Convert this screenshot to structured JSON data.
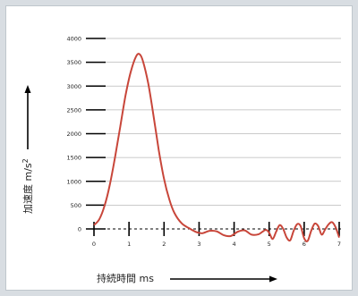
{
  "chart_data": {
    "type": "line",
    "title": "",
    "xlabel": "持続時間 ms",
    "ylabel": "加速度 m/s²",
    "ylabel_main": "加速度 m/s",
    "ylabel_sup": "2",
    "xlim": [
      0,
      7
    ],
    "ylim": [
      0,
      4000
    ],
    "x_ticks": [
      "0",
      "1",
      "2",
      "3",
      "4",
      "5",
      "6",
      "7"
    ],
    "y_ticks": [
      "0",
      "500",
      "1000",
      "1500",
      "2000",
      "2500",
      "3000",
      "3500",
      "4000"
    ],
    "grid": true,
    "series": [
      {
        "color": "#c8463a",
        "x": [
          0.0,
          0.15,
          0.3,
          0.45,
          0.6,
          0.75,
          0.9,
          1.05,
          1.2,
          1.3,
          1.4,
          1.55,
          1.7,
          1.85,
          2.0,
          2.15,
          2.3,
          2.5,
          2.7,
          2.9,
          3.0,
          3.1,
          3.3,
          3.5,
          3.7,
          3.9,
          4.1,
          4.3,
          4.5,
          4.7,
          4.9,
          5.0,
          5.1,
          5.2,
          5.3,
          5.4,
          5.5,
          5.6,
          5.7,
          5.8,
          5.9,
          6.0,
          6.1,
          6.2,
          6.3,
          6.4,
          6.5,
          6.6,
          6.7,
          6.8,
          6.9,
          7.0
        ],
        "y": [
          80,
          200,
          480,
          920,
          1500,
          2150,
          2800,
          3300,
          3620,
          3670,
          3520,
          3050,
          2380,
          1650,
          1050,
          620,
          330,
          120,
          20,
          -60,
          -80,
          -90,
          -40,
          -50,
          -130,
          -150,
          -60,
          -30,
          -120,
          -110,
          -20,
          -80,
          -210,
          -60,
          80,
          0,
          -180,
          -240,
          -40,
          100,
          60,
          -200,
          -250,
          -40,
          110,
          60,
          -120,
          -10,
          100,
          140,
          30,
          -180
        ]
      }
    ]
  }
}
